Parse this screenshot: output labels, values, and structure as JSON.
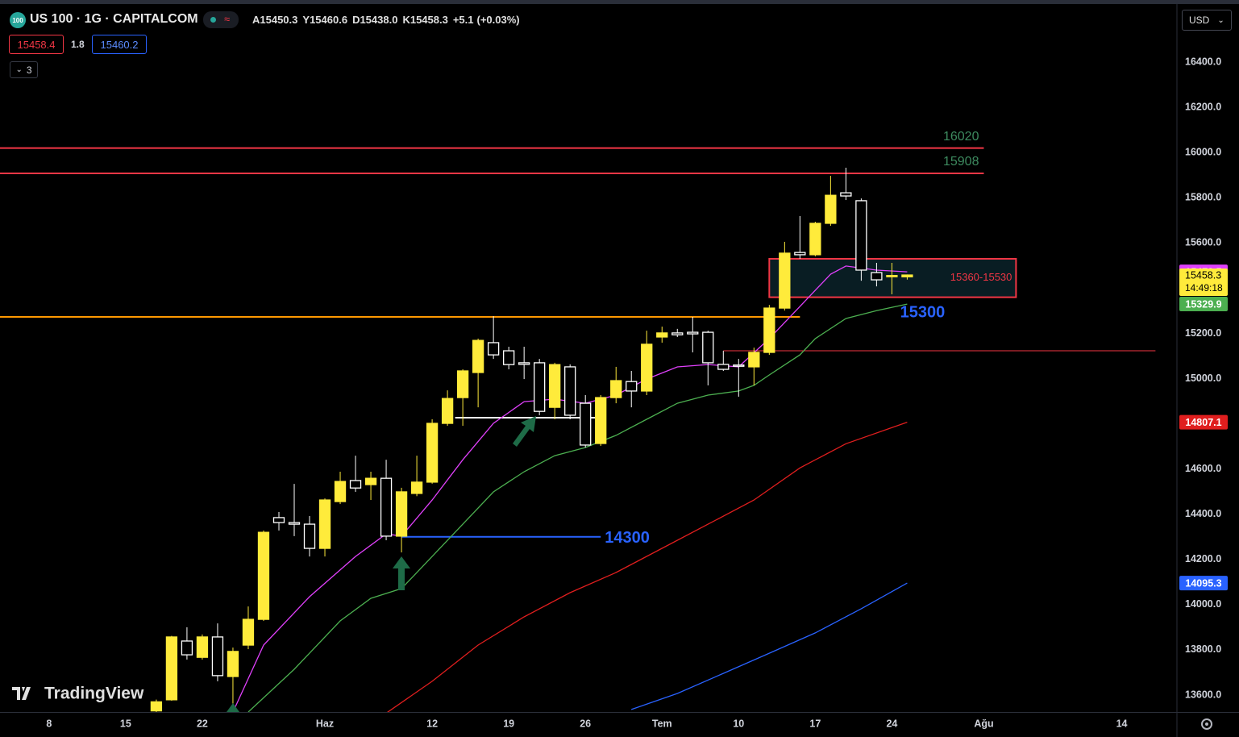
{
  "header": {
    "logo": "100",
    "symbol": "US 100 · 1G · CAPITALCOM",
    "approx": "≈",
    "ohlc": [
      {
        "key": "A",
        "value": "15450.3"
      },
      {
        "key": "Y",
        "value": "15460.6"
      },
      {
        "key": "D",
        "value": "15438.0"
      },
      {
        "key": "K",
        "value": "15458.3"
      }
    ],
    "change": "+5.1",
    "change_pct": "(+0.03%)",
    "bid": "15458.4",
    "spread": "1.8",
    "ask": "15460.2",
    "indicators_count": "3",
    "currency": "USD",
    "brand": "TradingView"
  },
  "chart_data": {
    "type": "candlestick",
    "x": [
      7,
      8,
      9,
      10,
      11,
      12,
      13,
      14,
      15,
      16,
      17,
      18,
      19,
      20,
      21,
      22,
      23,
      24,
      25,
      26,
      27,
      28,
      29,
      30,
      31,
      32,
      33,
      34,
      35,
      36,
      37,
      38,
      39,
      40,
      41,
      42,
      43,
      44,
      45,
      46,
      47,
      48,
      49,
      50,
      51,
      52,
      53,
      54,
      55,
      56
    ],
    "open": [
      13530,
      13579,
      13839,
      13767,
      13857,
      13682,
      13821,
      13935,
      14385,
      14363,
      14356,
      14249,
      14456,
      14549,
      14531,
      14559,
      14303,
      14492,
      14542,
      14802,
      14916,
      15027,
      15159,
      15123,
      15070,
      15070,
      14873,
      15052,
      14891,
      14713,
      14916,
      14987,
      14945,
      15184,
      15202,
      15205,
      15205,
      15063,
      15060,
      15052,
      15116,
      15312,
      15558,
      15548,
      15687,
      15822,
      15787,
      15469,
      15453,
      15450.3
    ],
    "high": [
      13580,
      13862,
      13900,
      13868,
      13917,
      13810,
      13992,
      14328,
      14410,
      14534,
      14392,
      14470,
      14588,
      14659,
      14588,
      14641,
      14517,
      14659,
      14820,
      14948,
      15041,
      15177,
      15276,
      15141,
      15141,
      15087,
      15070,
      15063,
      14927,
      14927,
      15052,
      15034,
      15212,
      15230,
      15220,
      15273,
      15212,
      15123,
      15087,
      15137,
      15326,
      15605,
      15719,
      15694,
      15897,
      15933,
      15797,
      15512,
      15512,
      15460.6
    ],
    "low": [
      13520,
      13575,
      13757,
      13757,
      13661,
      13525,
      13803,
      13928,
      14328,
      14303,
      14213,
      14213,
      14445,
      14499,
      14463,
      14285,
      14231,
      14480,
      14535,
      14791,
      14791,
      14873,
      15087,
      15041,
      14998,
      14838,
      14820,
      14820,
      14695,
      14702,
      14891,
      14873,
      14927,
      15159,
      15184,
      15116,
      14970,
      15034,
      14920,
      14970,
      15105,
      15301,
      15530,
      15541,
      15676,
      15790,
      15433,
      15408,
      15373,
      15438.0
    ],
    "close": [
      13570,
      13857,
      13778,
      13857,
      13686,
      13793,
      13935,
      14320,
      14363,
      14356,
      14249,
      14463,
      14545,
      14516,
      14559,
      14303,
      14499,
      14542,
      14802,
      14912,
      15034,
      15169,
      15105,
      15062,
      15063,
      14855,
      15062,
      14838,
      14706,
      14916,
      14991,
      14945,
      15152,
      15202,
      15194,
      15198,
      15070,
      15041,
      15055,
      15116,
      15312,
      15555,
      15548,
      15687,
      15811,
      15808,
      15480,
      15437,
      15456,
      15458.3
    ],
    "up_color": "#ffeb3b",
    "down_color": "#ffffff",
    "countdown": "14:49:18",
    "xlim": [
      -3.2,
      73.6
    ],
    "ylim": [
      13525,
      16650
    ],
    "xticks": [
      {
        "value": 0,
        "label": "8"
      },
      {
        "value": 5,
        "label": "15"
      },
      {
        "value": 10,
        "label": "22"
      },
      {
        "value": 18,
        "label": "Haz"
      },
      {
        "value": 25,
        "label": "12"
      },
      {
        "value": 30,
        "label": "19"
      },
      {
        "value": 35,
        "label": "26"
      },
      {
        "value": 40,
        "label": "Tem"
      },
      {
        "value": 45,
        "label": "10"
      },
      {
        "value": 50,
        "label": "17"
      },
      {
        "value": 55,
        "label": "24"
      },
      {
        "value": 61,
        "label": "Ağu"
      },
      {
        "value": 70,
        "label": "14"
      }
    ],
    "yticks": [
      {
        "value": 13600,
        "label": "13600.0"
      },
      {
        "value": 13800,
        "label": "13800.0"
      },
      {
        "value": 14000,
        "label": "14000.0"
      },
      {
        "value": 14200,
        "label": "14200.0"
      },
      {
        "value": 14400,
        "label": "14400.0"
      },
      {
        "value": 14600,
        "label": "14600.0"
      },
      {
        "value": 14800,
        "label": "14800.0"
      },
      {
        "value": 15000,
        "label": "15000.0"
      },
      {
        "value": 15200,
        "label": "15200.0"
      },
      {
        "value": 15400,
        "label": "15400.0"
      },
      {
        "value": 15600,
        "label": "15600.0"
      },
      {
        "value": 15800,
        "label": "15800.0"
      },
      {
        "value": 16000,
        "label": "16000.0"
      },
      {
        "value": 16200,
        "label": "16200.0"
      },
      {
        "value": 16400,
        "label": "16400.0"
      }
    ],
    "series": [
      {
        "color": "#e040fb",
        "x": [
          12,
          14,
          17,
          20,
          22,
          23,
          25,
          27,
          29,
          31,
          33,
          35,
          37,
          39,
          41,
          43,
          45,
          47,
          49,
          51,
          52,
          54,
          56
        ],
        "values": [
          13525,
          13821,
          14035,
          14213,
          14313,
          14303,
          14463,
          14641,
          14802,
          14898,
          14909,
          14891,
          14927,
          14998,
          15052,
          15062,
          15052,
          15177,
          15319,
          15462,
          15498,
          15480,
          15472.5
        ]
      },
      {
        "color": "#4caf50",
        "x": [
          13,
          16,
          19,
          21,
          23,
          25,
          27,
          29,
          31,
          33,
          35,
          37,
          39,
          41,
          43,
          45,
          46,
          47,
          49,
          50,
          52,
          54,
          56
        ],
        "values": [
          13525,
          13714,
          13928,
          14028,
          14071,
          14213,
          14356,
          14499,
          14588,
          14659,
          14695,
          14749,
          14820,
          14891,
          14927,
          14945,
          14970,
          15016,
          15105,
          15177,
          15266,
          15301,
          15329.9
        ]
      },
      {
        "color": "#e01e1e",
        "x": [
          22,
          25,
          28,
          31,
          34,
          37,
          40,
          43,
          46,
          49,
          52,
          56
        ],
        "values": [
          13520,
          13661,
          13821,
          13946,
          14053,
          14142,
          14249,
          14356,
          14463,
          14605,
          14712,
          14807.1
        ]
      },
      {
        "color": "#2962ff",
        "x": [
          38,
          41,
          44,
          47,
          50,
          53,
          56
        ],
        "values": [
          13536,
          13607,
          13696,
          13785,
          13875,
          13982,
          14095.3
        ]
      }
    ],
    "levels": [
      {
        "value": 16020,
        "x": [
          -3.2,
          61
        ],
        "color": "#f23645",
        "width": 2,
        "label_color": "#3d8a5f",
        "label_size": "small"
      },
      {
        "value": 15908,
        "x": [
          -3.2,
          61
        ],
        "color": "#f23645",
        "width": 2,
        "label_color": "#3d8a5f",
        "label_size": "small"
      },
      {
        "value": 15273,
        "x": [
          -3.2,
          49
        ],
        "color": "#ff9800",
        "width": 2
      },
      {
        "value": 15123,
        "x": [
          44,
          72.2
        ],
        "color": "#f23645",
        "width": 1
      },
      {
        "value": 14827,
        "x": [
          26.5,
          35.7
        ],
        "color": "#ffffff",
        "width": 2
      },
      {
        "value": 14300,
        "x": [
          23,
          36
        ],
        "color": "#2962ff",
        "width": 2,
        "label_color": "#2962ff",
        "label_size": "large"
      }
    ],
    "annotations": [
      {
        "value": 15300,
        "x": 57,
        "color": "#2962ff"
      }
    ],
    "zone": {
      "low": 15360,
      "high": 15530,
      "x": [
        47,
        63.1
      ],
      "label": "15360-15530",
      "color": "#f23645"
    }
  }
}
